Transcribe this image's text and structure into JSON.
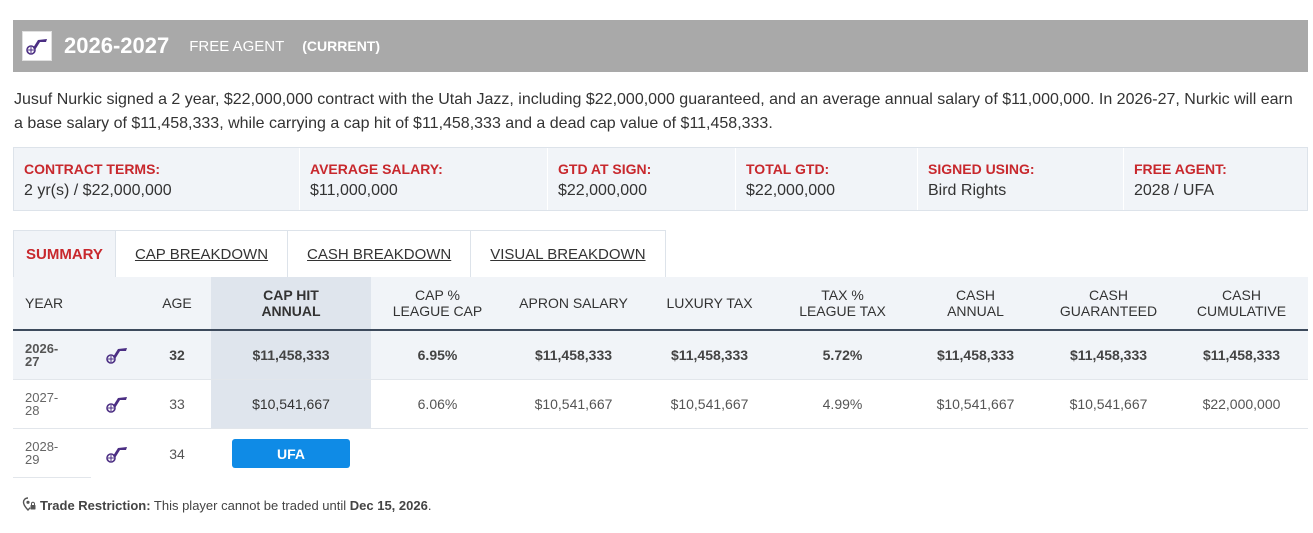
{
  "header": {
    "season": "2026-2027",
    "status": "FREE AGENT",
    "current": "(CURRENT)",
    "logo_icon": "utah-jazz-logo-icon",
    "logo_color": "#4b2e83"
  },
  "description": "Jusuf Nurkic signed a 2 year, $22,000,000 contract with the Utah Jazz, including $22,000,000 guaranteed, and an average annual salary of $11,000,000. In 2026-27, Nurkic will earn a base salary of $11,458,333, while carrying a cap hit of $11,458,333 and a dead cap value of $11,458,333.",
  "terms": [
    {
      "label": "CONTRACT TERMS:",
      "value": "2 yr(s) / $22,000,000"
    },
    {
      "label": "AVERAGE SALARY:",
      "value": "$11,000,000"
    },
    {
      "label": "GTD AT SIGN:",
      "value": "$22,000,000"
    },
    {
      "label": "TOTAL GTD:",
      "value": "$22,000,000"
    },
    {
      "label": "SIGNED USING:",
      "value": "Bird Rights"
    },
    {
      "label": "FREE AGENT:",
      "value": "2028 / UFA"
    }
  ],
  "tabs": [
    {
      "label": "SUMMARY",
      "active": true
    },
    {
      "label": "CAP BREAKDOWN",
      "active": false
    },
    {
      "label": "CASH BREAKDOWN",
      "active": false
    },
    {
      "label": "VISUAL BREAKDOWN",
      "active": false
    }
  ],
  "table": {
    "headers": {
      "year": "YEAR",
      "age": "AGE",
      "cap_hit_1": "CAP HIT",
      "cap_hit_2": "ANNUAL",
      "cap_pct_1": "CAP %",
      "cap_pct_2": "LEAGUE CAP",
      "apron": "APRON SALARY",
      "luxury": "LUXURY TAX",
      "tax_pct_1": "TAX %",
      "tax_pct_2": "LEAGUE TAX",
      "cash_1": "CASH",
      "cash_2": "ANNUAL",
      "cashg_1": "CASH",
      "cashg_2": "GUARANTEED",
      "cashc_1": "CASH",
      "cashc_2": "CUMULATIVE"
    },
    "rows": [
      {
        "year_a": "2026-",
        "year_b": "27",
        "age": "32",
        "cap_hit": "$11,458,333",
        "cap_pct": "6.95%",
        "apron": "$11,458,333",
        "luxury": "$11,458,333",
        "tax_pct": "5.72%",
        "cash": "$11,458,333",
        "cash_gtd": "$11,458,333",
        "cash_cum": "$11,458,333"
      },
      {
        "year_a": "2027-",
        "year_b": "28",
        "age": "33",
        "cap_hit": "$10,541,667",
        "cap_pct": "6.06%",
        "apron": "$10,541,667",
        "luxury": "$10,541,667",
        "tax_pct": "4.99%",
        "cash": "$10,541,667",
        "cash_gtd": "$10,541,667",
        "cash_cum": "$22,000,000"
      },
      {
        "year_a": "2028-",
        "year_b": "29",
        "age": "34",
        "badge": "UFA"
      }
    ]
  },
  "restriction": {
    "icon": "location-lock-icon",
    "label": "Trade Restriction:",
    "text": " This player cannot be traded until ",
    "date": "Dec 15, 2026",
    "end": "."
  }
}
